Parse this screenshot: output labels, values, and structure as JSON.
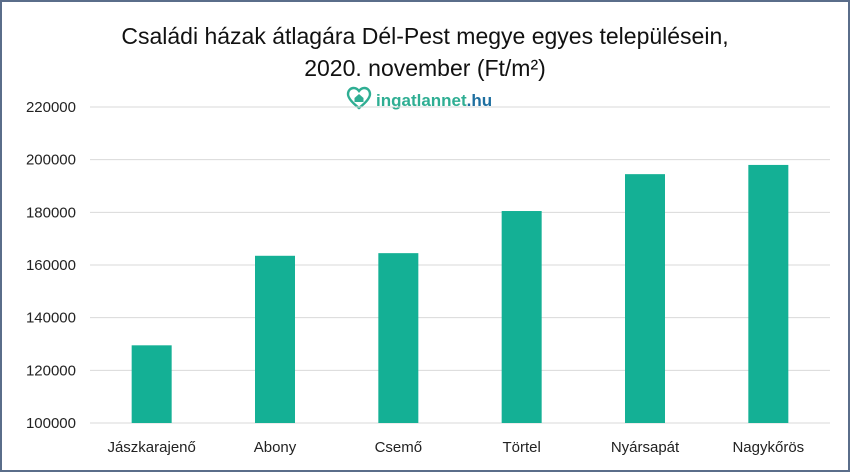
{
  "chart_data": {
    "type": "bar",
    "title_line1": "Családi házak átlagára Dél-Pest megye egyes településein,",
    "title_line2": "2020. november (Ft/m²)",
    "categories": [
      "Jászkarajenő",
      "Abony",
      "Csemő",
      "Törtel",
      "Nyársapát",
      "Nagykőrös"
    ],
    "values": [
      129500,
      163500,
      164500,
      180500,
      194500,
      198000
    ],
    "ylim": [
      100000,
      220000
    ],
    "yticks": [
      "220000",
      "200000",
      "180000",
      "160000",
      "140000",
      "120000",
      "100000"
    ],
    "ytick_values": [
      220000,
      200000,
      180000,
      160000,
      140000,
      120000,
      100000
    ],
    "grid": true,
    "bar_color": "#14b095",
    "grid_color": "#d9d9d9"
  },
  "watermark": {
    "brand": "ingatlannet",
    "tld": ".hu",
    "icon": "house-heart-icon"
  }
}
